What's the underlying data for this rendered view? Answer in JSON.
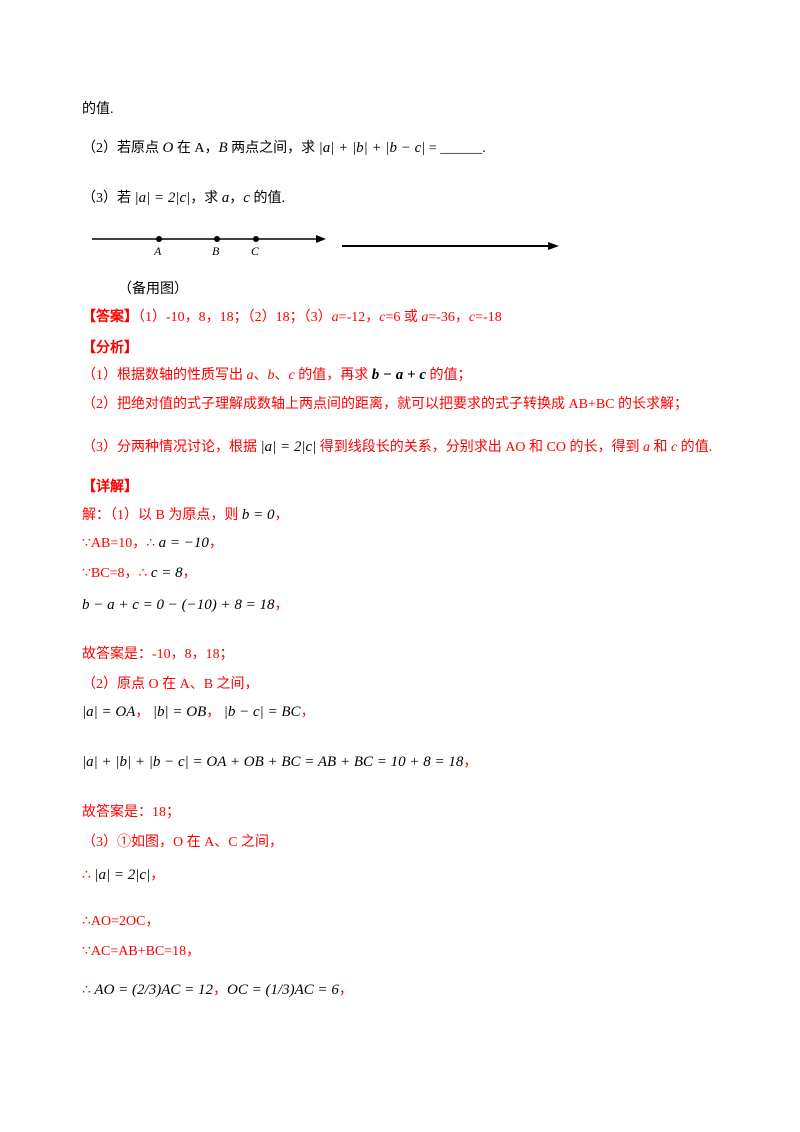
{
  "lines": [
    [
      {
        "t": "的值.",
        "s": "k"
      }
    ],
    [
      {
        "t": "（2）若原点 ",
        "s": "k"
      },
      {
        "t": "O",
        "s": "m"
      },
      {
        "t": " 在 A，",
        "s": "k"
      },
      {
        "t": "B",
        "s": "m"
      },
      {
        "t": " 两点之间，求 ",
        "s": "k"
      },
      {
        "t": "|a| + |b| + |b − c|",
        "s": "m"
      },
      {
        "t": " = ______.",
        "s": "k"
      }
    ],
    [
      {
        "t": "（3）若 ",
        "s": "k"
      },
      {
        "t": "|a| = 2|c|",
        "s": "m"
      },
      {
        "t": "，求 ",
        "s": "k"
      },
      {
        "t": "a",
        "s": "m"
      },
      {
        "t": "，",
        "s": "k"
      },
      {
        "t": "c",
        "s": "m"
      },
      {
        "t": " 的值.",
        "s": "k"
      }
    ],
    [
      {
        "t": "（备用图）",
        "s": "k"
      }
    ],
    [
      {
        "t": "【答案】",
        "s": "r b"
      },
      {
        "t": "（1）-10，8，18；（2）18；（3）",
        "s": "r"
      },
      {
        "t": "a",
        "s": "mr"
      },
      {
        "t": "=-12，",
        "s": "r"
      },
      {
        "t": "c",
        "s": "mr"
      },
      {
        "t": "=6 或 ",
        "s": "r"
      },
      {
        "t": "a",
        "s": "mr"
      },
      {
        "t": "=-36，",
        "s": "r"
      },
      {
        "t": "c",
        "s": "mr"
      },
      {
        "t": "=-18",
        "s": "r"
      }
    ],
    [
      {
        "t": "【分析】",
        "s": "r b"
      }
    ],
    [
      {
        "t": "（1）根据数轴的性质写出 ",
        "s": "r"
      },
      {
        "t": "a",
        "s": "mr"
      },
      {
        "t": "、",
        "s": "r"
      },
      {
        "t": "b",
        "s": "mr"
      },
      {
        "t": "、",
        "s": "r"
      },
      {
        "t": "c",
        "s": "mr"
      },
      {
        "t": " 的值，再求 ",
        "s": "r"
      },
      {
        "t": "b − a + c",
        "s": "m b"
      },
      {
        "t": " 的值；",
        "s": "r"
      }
    ],
    [
      {
        "t": "（2）把绝对值的式子理解成数轴上两点间的距离，就可以把要求的式子转换成 AB+BC 的长求解；",
        "s": "r"
      }
    ],
    [
      {
        "t": "（3）分两种情况讨论，根据 ",
        "s": "r"
      },
      {
        "t": "|a| = 2|c|",
        "s": "m"
      },
      {
        "t": " 得到线段长的关系，分别求出 AO 和 CO 的长，得到 ",
        "s": "r"
      },
      {
        "t": "a",
        "s": "mr"
      },
      {
        "t": " 和 ",
        "s": "r"
      },
      {
        "t": "c",
        "s": "mr"
      },
      {
        "t": " 的值.",
        "s": "r"
      }
    ],
    [
      {
        "t": "【详解】",
        "s": "r b"
      }
    ],
    [
      {
        "t": "解：（1）以 B 为原点，则 ",
        "s": "r"
      },
      {
        "t": "b = 0",
        "s": "m"
      },
      {
        "t": "，",
        "s": "r"
      }
    ],
    [
      {
        "t": "∵AB=10，∴ ",
        "s": "r"
      },
      {
        "t": "a = −10",
        "s": "m"
      },
      {
        "t": "，",
        "s": "r"
      }
    ],
    [
      {
        "t": "∵BC=8，∴ ",
        "s": "r"
      },
      {
        "t": "c = 8",
        "s": "m"
      },
      {
        "t": "，",
        "s": "r"
      }
    ],
    [
      {
        "t": "b − a + c = 0 − (−10) + 8 = 18",
        "s": "m"
      },
      {
        "t": "，",
        "s": "r"
      }
    ],
    [
      {
        "t": "故答案是：-10，8，18；",
        "s": "r"
      }
    ],
    [
      {
        "t": "（2）原点 O 在 A、B 之间，",
        "s": "r"
      }
    ],
    [
      {
        "t": "|a| = OA",
        "s": "m"
      },
      {
        "t": "，  ",
        "s": "r"
      },
      {
        "t": "|b| = OB",
        "s": "m"
      },
      {
        "t": "，  ",
        "s": "r"
      },
      {
        "t": "|b − c| = BC",
        "s": "m"
      },
      {
        "t": "，",
        "s": "r"
      }
    ],
    [
      {
        "t": "|a| + |b| + |b − c| = OA + OB + BC = AB + BC = 10 + 8 = 18",
        "s": "m"
      },
      {
        "t": "，",
        "s": "r"
      }
    ],
    [
      {
        "t": "故答案是：18；",
        "s": "r"
      }
    ],
    [
      {
        "t": "（3）①如图，O 在 A、C 之间，",
        "s": "r"
      }
    ],
    [
      {
        "t": "∴ ",
        "s": "r"
      },
      {
        "t": "|a| = 2|c|",
        "s": "m"
      },
      {
        "t": "，",
        "s": "r"
      }
    ],
    [
      {
        "t": "∴AO=2OC，",
        "s": "r"
      }
    ],
    [
      {
        "t": "∵AC=AB+BC=18，",
        "s": "r"
      }
    ],
    [
      {
        "t": "∴ ",
        "s": "r"
      },
      {
        "t": "AO = (2/3)AC = 12",
        "s": "m"
      },
      {
        "t": "，",
        "s": "r"
      },
      {
        "t": "OC = (1/3)AC = 6",
        "s": "m"
      },
      {
        "t": "，",
        "s": "r"
      }
    ]
  ],
  "number_line": {
    "points": [
      "A",
      "B",
      "C"
    ]
  }
}
